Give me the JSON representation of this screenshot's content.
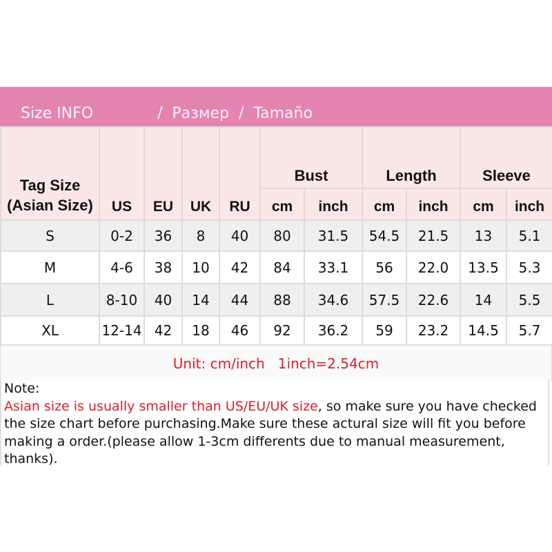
{
  "banner": {
    "part1": "Size INFO",
    "part2": "/  Размер  /  Tamaño"
  },
  "headers": {
    "tag_size": "Tag Size (Asian Size)",
    "us": "US",
    "eu": "EU",
    "uk": "UK",
    "ru": "RU",
    "bust": "Bust",
    "length": "Length",
    "sleeve": "Sleeve",
    "cm": "cm",
    "inch": "inch"
  },
  "rows": [
    [
      "S",
      "0-2",
      "36",
      "8",
      "40",
      "80",
      "31.5",
      "54.5",
      "21.5",
      "13",
      "5.1"
    ],
    [
      "M",
      "4-6",
      "38",
      "10",
      "42",
      "84",
      "33.1",
      "56",
      "22.0",
      "13.5",
      "5.3"
    ],
    [
      "L",
      "8-10",
      "40",
      "14",
      "44",
      "88",
      "34.6",
      "57.5",
      "22.6",
      "14",
      "5.5"
    ],
    [
      "XL",
      "12-14",
      "42",
      "18",
      "46",
      "92",
      "36.2",
      "59",
      "23.2",
      "14.5",
      "5.7"
    ]
  ],
  "unit": "Unit: cm/inch   1inch=2.54cm",
  "note": {
    "label": "Note:",
    "highlight": "Asian size is usually smaller than US/EU/UK size",
    "text": ", so make sure you have checked the size chart before purchasing.Make sure these actural size will fit you before making a order.(please allow 1-3cm differents due to manual measurement, thanks)."
  },
  "colors": {
    "banner": "#e385b0",
    "header_bg": "#fbe8e6",
    "stripe": "#efefef",
    "accent_red": "#d9202a"
  }
}
